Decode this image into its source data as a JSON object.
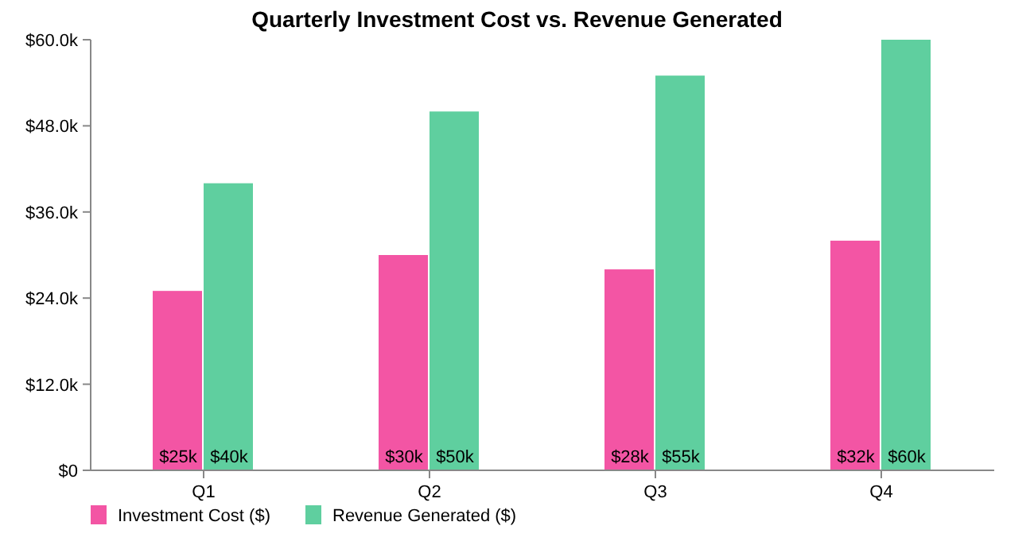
{
  "chart_data": {
    "type": "bar",
    "title": "Quarterly Investment Cost vs. Revenue Generated",
    "categories": [
      "Q1",
      "Q2",
      "Q3",
      "Q4"
    ],
    "series": [
      {
        "name": "Investment Cost ($)",
        "color": "#f355a4",
        "values": [
          25000,
          30000,
          28000,
          32000
        ],
        "value_labels": [
          "$25k",
          "$30k",
          "$28k",
          "$32k"
        ]
      },
      {
        "name": "Revenue Generated ($)",
        "color": "#5fcf9f",
        "values": [
          40000,
          50000,
          55000,
          60000
        ],
        "value_labels": [
          "$40k",
          "$50k",
          "$55k",
          "$60k"
        ]
      }
    ],
    "ylim": [
      0,
      60000
    ],
    "yticks": [
      {
        "value": 0,
        "label": "$0"
      },
      {
        "value": 12000,
        "label": "$12.0k"
      },
      {
        "value": 24000,
        "label": "$24.0k"
      },
      {
        "value": 36000,
        "label": "$36.0k"
      },
      {
        "value": 48000,
        "label": "$48.0k"
      },
      {
        "value": 60000,
        "label": "$60.0k"
      }
    ],
    "grid": false,
    "legend": "bottom left"
  }
}
